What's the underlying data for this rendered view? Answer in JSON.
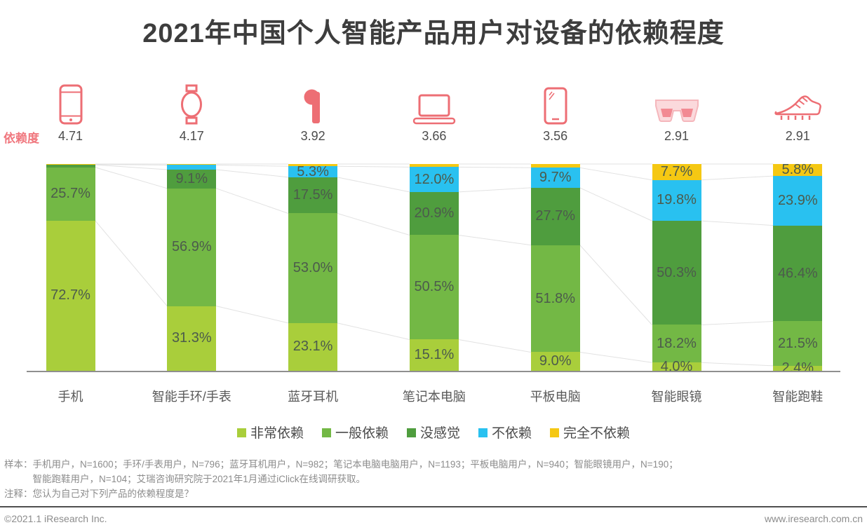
{
  "title": "2021年中国个人智能产品用户对设备的依赖程度",
  "chart_data": {
    "type": "stacked-bar",
    "unit": "percent",
    "title": "2021年中国个人智能产品用户对设备的依赖程度",
    "score_axis_label": "依赖度",
    "categories": [
      "手机",
      "智能手环/手表",
      "蓝牙耳机",
      "笔记本电脑",
      "平板电脑",
      "智能眼镜",
      "智能跑鞋"
    ],
    "icons": [
      "phone-icon",
      "smartwatch-icon",
      "earbud-icon",
      "laptop-icon",
      "tablet-icon",
      "glasses-icon",
      "running-shoe-icon"
    ],
    "scores": [
      4.71,
      4.17,
      3.92,
      3.66,
      3.56,
      2.91,
      2.91
    ],
    "series": [
      {
        "name": "非常依赖",
        "color": "#a9ce3b",
        "values": [
          72.7,
          31.3,
          23.1,
          15.1,
          9.0,
          4.0,
          2.4
        ]
      },
      {
        "name": "一般依赖",
        "color": "#73b845",
        "values": [
          25.7,
          56.9,
          53.0,
          50.5,
          51.8,
          18.2,
          21.5
        ]
      },
      {
        "name": "没感觉",
        "color": "#4f9d3e",
        "values": [
          1.2,
          9.1,
          17.5,
          20.9,
          27.7,
          50.3,
          46.4
        ]
      },
      {
        "name": "不依赖",
        "color": "#29c1f0",
        "values": [
          0.2,
          2.2,
          5.3,
          12.0,
          9.7,
          19.8,
          23.9
        ]
      },
      {
        "name": "完全不依赖",
        "color": "#f5c813",
        "values": [
          0.2,
          0.5,
          1.1,
          1.5,
          1.8,
          7.7,
          5.8
        ]
      }
    ],
    "label_min_percent": 2.3,
    "ylim": [
      0,
      100
    ],
    "grid": false,
    "legend_position": "bottom"
  },
  "footnotes": {
    "sample_label": "样本：",
    "sample_line1": "手机用户，N=1600；手环/手表用户，N=796；蓝牙耳机用户，N=982；笔记本电脑电脑用户，N=1193；平板电脑用户，N=940；智能眼镜用户，N=190；",
    "sample_line2": "智能跑鞋用户，N=104；艾瑞咨询研究院于2021年1月通过iClick在线调研获取。",
    "note_label": "注释：",
    "note_text": "您认为自己对下列产品的依赖程度是？"
  },
  "footer": {
    "copyright": "©2021.1 iResearch Inc.",
    "website": "www.iresearch.com.cn"
  },
  "colors": {
    "accent_pink": "#ed6e74",
    "accent_pink_light": "#fbd9dc",
    "accent_pink_lens": "#f28a93",
    "axis_line": "#8f8f8f",
    "connector_line": "#e2e2e2",
    "title_text": "#3d3d3d",
    "note_text": "#8c8c8c",
    "segment_label_text": "#4c5b4c"
  }
}
